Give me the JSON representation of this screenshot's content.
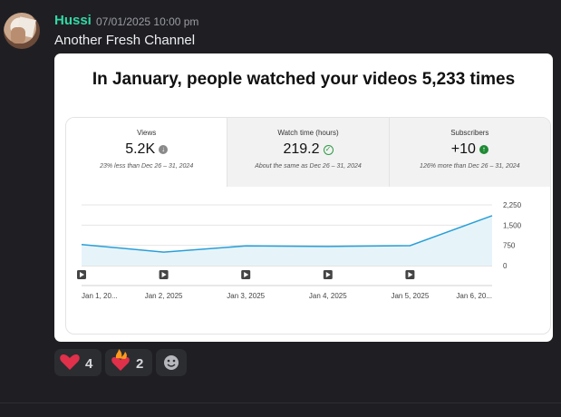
{
  "message": {
    "username": "Hussi",
    "timestamp": "07/01/2025 10:00 pm",
    "content": "Another Fresh Channel"
  },
  "card": {
    "title": "In January, people watched your videos 5,233 times",
    "stats": [
      {
        "label": "Views",
        "value": "5.2K",
        "icon": "arrow-down-circle-icon",
        "note": "23% less than Dec 26 – 31, 2024"
      },
      {
        "label": "Watch time (hours)",
        "value": "219.2",
        "icon": "check-circle-icon",
        "note": "About the same as Dec 26 – 31, 2024"
      },
      {
        "label": "Subscribers",
        "value": "+10",
        "icon": "arrow-up-circle-icon",
        "note": "126% more than Dec 26 – 31, 2024"
      }
    ]
  },
  "chart_data": {
    "type": "area",
    "x": [
      "Jan 1, 20...",
      "Jan 2, 2025",
      "Jan 3, 2025",
      "Jan 4, 2025",
      "Jan 5, 2025",
      "Jan 6, 20..."
    ],
    "series": [
      {
        "values": [
          780,
          500,
          730,
          710,
          740,
          1850
        ]
      }
    ],
    "yticks": [
      "2,250",
      "1,500",
      "750",
      "0"
    ],
    "ylim": [
      0,
      2250
    ],
    "line_color": "#2a9fd6",
    "fill_color": "#e6f4fa",
    "grid": true
  },
  "reactions": [
    {
      "emoji": "heart",
      "count": "4"
    },
    {
      "emoji": "fire-heart",
      "count": "2"
    }
  ]
}
